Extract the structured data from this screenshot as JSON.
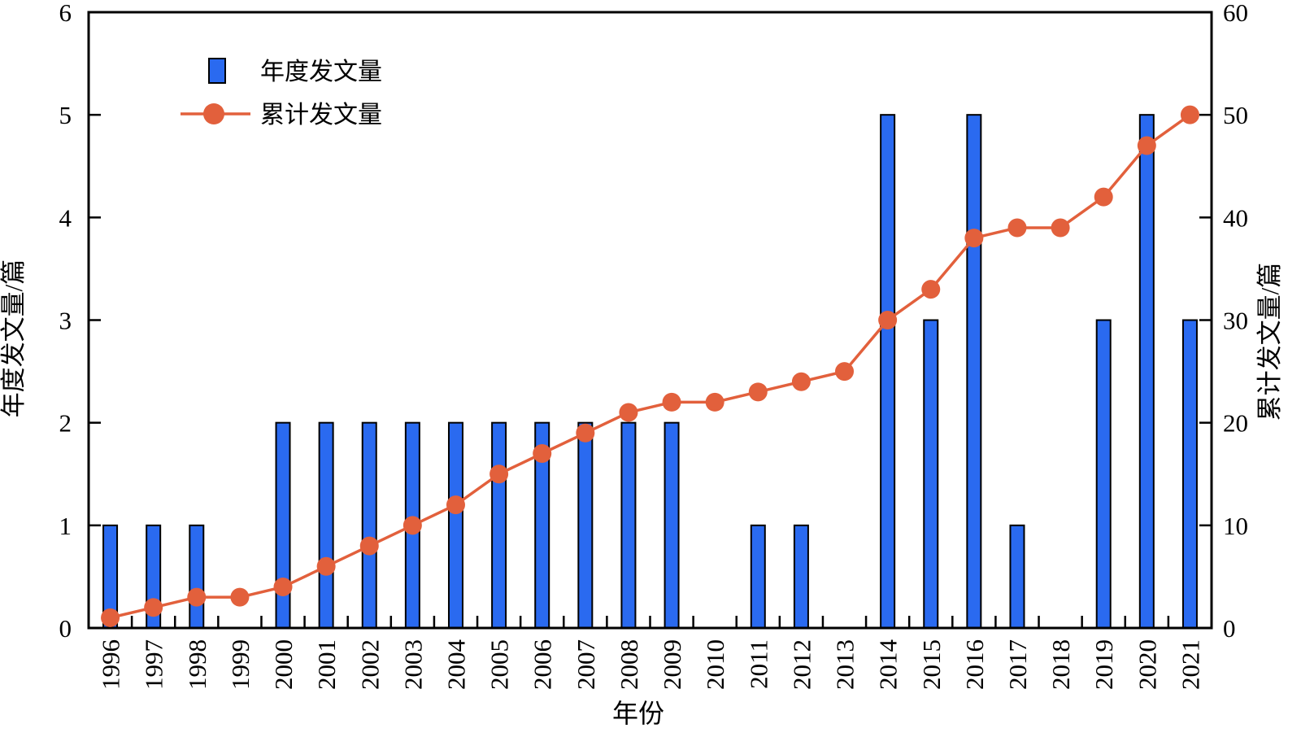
{
  "chart_data": {
    "type": "combo",
    "title": "",
    "xlabel": "年份",
    "categories": [
      1996,
      1997,
      1998,
      1999,
      2000,
      2001,
      2002,
      2003,
      2004,
      2005,
      2006,
      2007,
      2008,
      2009,
      2010,
      2011,
      2012,
      2013,
      2014,
      2015,
      2016,
      2017,
      2018,
      2019,
      2020,
      2021
    ],
    "left_axis": {
      "label": "年度发文量/篇",
      "min": 0,
      "max": 6,
      "ticks": [
        0,
        1,
        2,
        3,
        4,
        5,
        6
      ]
    },
    "right_axis": {
      "label": "累计发文量/篇",
      "min": 0,
      "max": 60,
      "ticks": [
        0,
        10,
        20,
        30,
        40,
        50,
        60
      ]
    },
    "series": [
      {
        "name": "年度发文量",
        "type": "bar",
        "axis": "left",
        "color": "#2A6AF0",
        "values": [
          1,
          1,
          1,
          0,
          2,
          2,
          2,
          2,
          2,
          2,
          2,
          2,
          2,
          2,
          0,
          1,
          1,
          0,
          5,
          3,
          5,
          1,
          0,
          3,
          5,
          3
        ]
      },
      {
        "name": "累计发文量",
        "type": "line",
        "axis": "right",
        "color": "#E2603C",
        "values": [
          1,
          2,
          3,
          3,
          4,
          6,
          8,
          10,
          12,
          15,
          17,
          19,
          21,
          22,
          22,
          23,
          24,
          25,
          30,
          33,
          38,
          39,
          39,
          42,
          47,
          50
        ]
      }
    ],
    "legend": {
      "items": [
        "年度发文量",
        "累计发文量"
      ],
      "position": "top-left-inside"
    },
    "grid": false
  },
  "colors": {
    "background": "#FFFFFF",
    "bar_fill": "#2A6AF0",
    "bar_stroke": "#000000",
    "line": "#E2603C",
    "axis": "#000000"
  }
}
